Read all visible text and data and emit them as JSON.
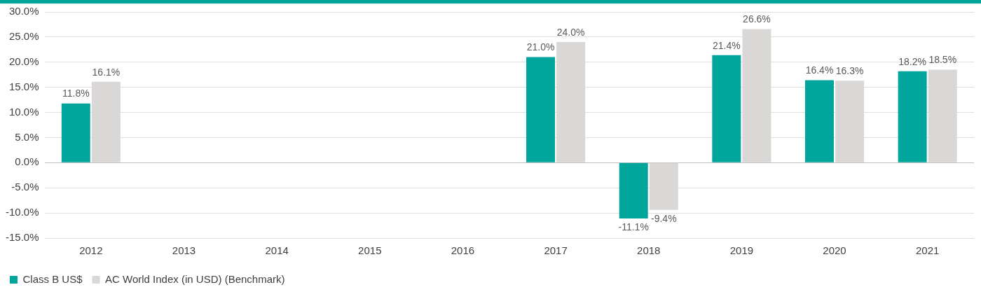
{
  "chart_data": {
    "type": "bar",
    "categories": [
      "2012",
      "2013",
      "2014",
      "2015",
      "2016",
      "2017",
      "2018",
      "2019",
      "2020",
      "2021"
    ],
    "series": [
      {
        "name": "Class B US$",
        "color": "#00a59b",
        "values": [
          11.8,
          null,
          null,
          null,
          null,
          21.0,
          -11.1,
          21.4,
          16.4,
          18.2
        ],
        "value_labels": [
          "11.8%",
          null,
          null,
          null,
          null,
          "21.0%",
          "-11.1%",
          "21.4%",
          "16.4%",
          "18.2%"
        ]
      },
      {
        "name": "AC World Index (in USD) (Benchmark)",
        "color": "#d9d8d6",
        "values": [
          16.1,
          null,
          null,
          null,
          null,
          24.0,
          -9.4,
          26.6,
          16.3,
          18.5
        ],
        "value_labels": [
          "16.1%",
          null,
          null,
          null,
          null,
          "24.0%",
          "-9.4%",
          "26.6%",
          "16.3%",
          "18.5%"
        ]
      }
    ],
    "ylim": [
      -15,
      30
    ],
    "yticks": [
      {
        "value": -15,
        "label": "-15.0%"
      },
      {
        "value": -10,
        "label": "-10.0%"
      },
      {
        "value": -5,
        "label": "-5.0%"
      },
      {
        "value": 0,
        "label": "0.0%"
      },
      {
        "value": 5,
        "label": "5.0%"
      },
      {
        "value": 10,
        "label": "10.0%"
      },
      {
        "value": 15,
        "label": "15.0%"
      },
      {
        "value": 20,
        "label": "20.0%"
      },
      {
        "value": 25,
        "label": "25.0%"
      },
      {
        "value": 30,
        "label": "30.0%"
      }
    ],
    "grid": "y",
    "legend": "bottom left"
  }
}
